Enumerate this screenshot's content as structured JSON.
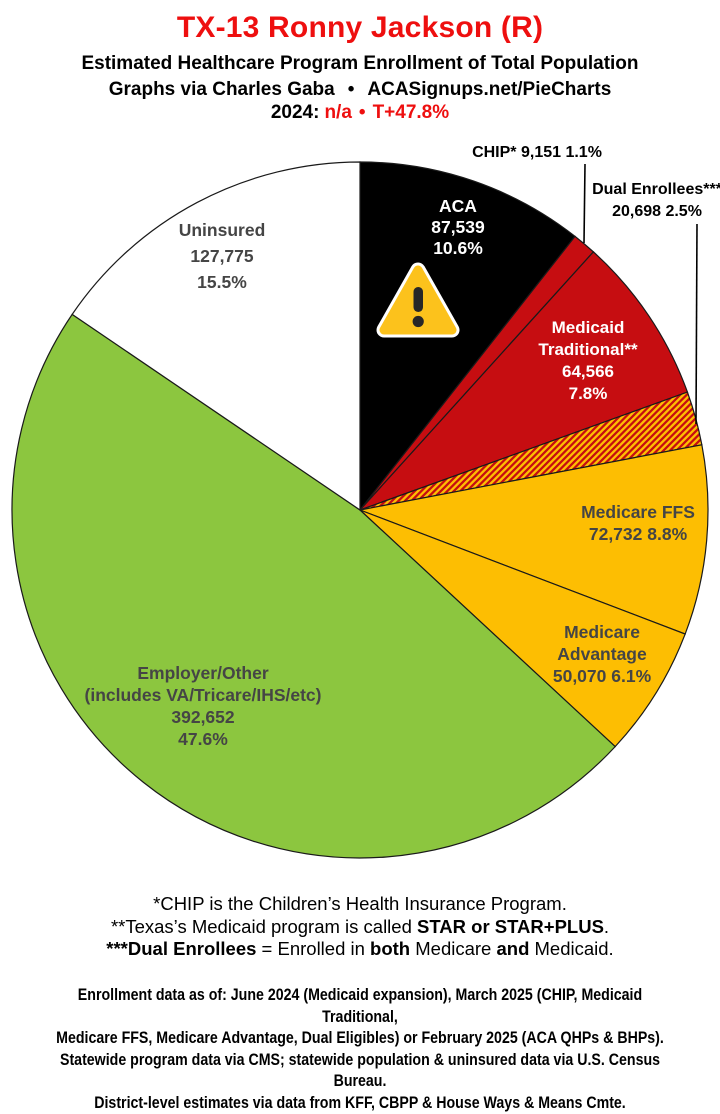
{
  "header": {
    "title": "TX-13 Ronny Jackson (R)",
    "subtitle": "Estimated Healthcare Program Enrollment of Total Population",
    "credit_name": "Graphs via Charles Gaba",
    "credit_sep": "•",
    "credit_site": "ACASignups.net/PieCharts",
    "year_prefix": "2024:",
    "year_value": "n/a",
    "year_sep": "•",
    "year_margin": "T+47.8%"
  },
  "colors": {
    "title_red": "#ee0f0f",
    "slice_black": "#000000",
    "slice_red": "#c60d11",
    "slice_yellow": "#fdbe02",
    "slice_green": "#8cc63f",
    "slice_white": "#ffffff",
    "hatch_red": "#c60d11",
    "hatch_yellow": "#fdbe02",
    "label_gray": "#454545",
    "slice_outline": "#1a1a1a"
  },
  "chart_data": {
    "type": "pie",
    "title": "Estimated Healthcare Program Enrollment of Total Population",
    "start_angle_deg": 0,
    "direction": "clockwise",
    "legend_position": "on-slice",
    "slices": [
      {
        "id": "aca",
        "label": "ACA",
        "value": 87539,
        "pct": 10.6,
        "color": "#000000"
      },
      {
        "id": "chip",
        "label": "CHIP*",
        "value": 9151,
        "pct": 1.1,
        "color": "#c60d11"
      },
      {
        "id": "medicaid-traditional",
        "label": "Medicaid Traditional**",
        "value": 64566,
        "pct": 7.8,
        "color": "#c60d11"
      },
      {
        "id": "dual-enrollees",
        "label": "Dual Enrollees***",
        "value": 20698,
        "pct": 2.5,
        "color": "hatch(red/yellow)",
        "hatch": true
      },
      {
        "id": "medicare-ffs",
        "label": "Medicare FFS",
        "value": 72732,
        "pct": 8.8,
        "color": "#fdbe02"
      },
      {
        "id": "medicare-advantage",
        "label": "Medicare Advantage",
        "value": 50070,
        "pct": 6.1,
        "color": "#fdbe02"
      },
      {
        "id": "employer-other",
        "label": "Employer/Other (includes VA/Tricare/IHS/etc)",
        "value": 392652,
        "pct": 47.6,
        "color": "#8cc63f"
      },
      {
        "id": "uninsured",
        "label": "Uninsured",
        "value": 127775,
        "pct": 15.5,
        "color": "#ffffff"
      }
    ]
  },
  "slice_labels": {
    "aca": {
      "l1": "ACA",
      "l2": "87,539",
      "l3": "10.6%"
    },
    "chip": {
      "text": "CHIP* 9,151 1.1%"
    },
    "dual": {
      "l1": "Dual Enrollees***",
      "l2": "20,698 2.5%"
    },
    "medicaid": {
      "l1": "Medicaid",
      "l2": "Traditional**",
      "l3": "64,566",
      "l4": "7.8%"
    },
    "ffs": {
      "l1": "Medicare FFS",
      "l2": "72,732 8.8%"
    },
    "adv": {
      "l1": "Medicare",
      "l2": "Advantage",
      "l3": "50,070 6.1%"
    },
    "employer": {
      "l1": "Employer/Other",
      "l2": "(includes VA/Tricare/IHS/etc)",
      "l3": "392,652",
      "l4": "47.6%"
    },
    "uninsured": {
      "l1": "Uninsured",
      "l2": "127,775",
      "l3": "15.5%"
    }
  },
  "footnotes": {
    "line1": "*CHIP is the Children’s Health Insurance Program.",
    "line2_pre": "**Texas’s Medicaid program is called ",
    "line2_bold": "STAR or STAR+PLUS",
    "line2_post": ".",
    "line3_bold1": "***Dual Enrollees",
    "line3_mid1": " = Enrolled in ",
    "line3_bold2": "both",
    "line3_mid2": " Medicare ",
    "line3_bold3": "and",
    "line3_post": " Medicaid."
  },
  "source": {
    "lines": [
      "Enrollment data as of: June 2024 (Medicaid expansion), March 2025 (CHIP, Medicaid Traditional,",
      "Medicare FFS, Medicare Advantage, Dual Eligibles) or February 2025 (ACA QHPs & BHPs).",
      "Statewide program data via CMS; statewide population & uninsured data via U.S. Census Bureau.",
      "District-level estimates via data from KFF, CBPP & House Ways & Means Cmte."
    ]
  }
}
